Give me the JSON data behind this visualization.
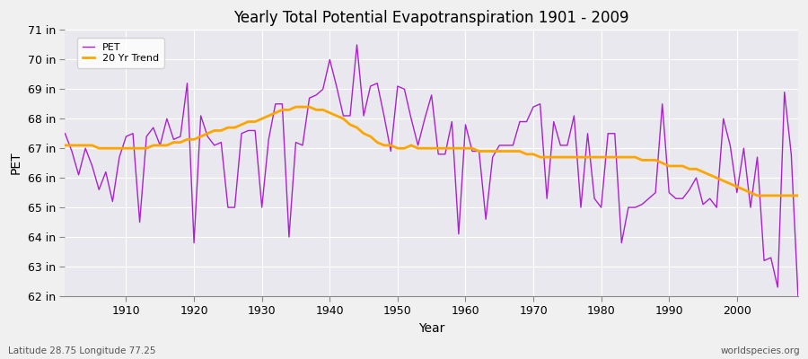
{
  "title": "Yearly Total Potential Evapotranspiration 1901 - 2009",
  "xlabel": "Year",
  "ylabel": "PET",
  "subtitle_left": "Latitude 28.75 Longitude 77.25",
  "subtitle_right": "worldspecies.org",
  "xlim": [
    1901,
    2009
  ],
  "ylim": [
    62,
    71
  ],
  "yticks": [
    62,
    63,
    64,
    65,
    66,
    67,
    68,
    69,
    70,
    71
  ],
  "xticks": [
    1910,
    1920,
    1930,
    1940,
    1950,
    1960,
    1970,
    1980,
    1990,
    2000
  ],
  "pet_color": "#AA22CC",
  "trend_color": "#FFA500",
  "fig_bg_color": "#F0F0F0",
  "plot_bg_color": "#E8E8EE",
  "legend_pet": "PET",
  "legend_trend": "20 Yr Trend",
  "years": [
    1901,
    1902,
    1903,
    1904,
    1905,
    1906,
    1907,
    1908,
    1909,
    1910,
    1911,
    1912,
    1913,
    1914,
    1915,
    1916,
    1917,
    1918,
    1919,
    1920,
    1921,
    1922,
    1923,
    1924,
    1925,
    1926,
    1927,
    1928,
    1929,
    1930,
    1931,
    1932,
    1933,
    1934,
    1935,
    1936,
    1937,
    1938,
    1939,
    1940,
    1941,
    1942,
    1943,
    1944,
    1945,
    1946,
    1947,
    1948,
    1949,
    1950,
    1951,
    1952,
    1953,
    1954,
    1955,
    1956,
    1957,
    1958,
    1959,
    1960,
    1961,
    1962,
    1963,
    1964,
    1965,
    1966,
    1967,
    1968,
    1969,
    1970,
    1971,
    1972,
    1973,
    1974,
    1975,
    1976,
    1977,
    1978,
    1979,
    1980,
    1981,
    1982,
    1983,
    1984,
    1985,
    1986,
    1987,
    1988,
    1989,
    1990,
    1991,
    1992,
    1993,
    1994,
    1995,
    1996,
    1997,
    1998,
    1999,
    2000,
    2001,
    2002,
    2003,
    2004,
    2005,
    2006,
    2007,
    2008,
    2009
  ],
  "pet_values": [
    67.5,
    66.9,
    66.1,
    67.0,
    66.4,
    65.6,
    66.2,
    65.2,
    66.7,
    67.4,
    67.5,
    64.5,
    67.4,
    67.7,
    67.1,
    68.0,
    67.3,
    67.4,
    69.2,
    63.8,
    68.1,
    67.4,
    67.1,
    67.2,
    65.0,
    65.0,
    67.5,
    67.6,
    67.6,
    65.0,
    67.3,
    68.5,
    68.5,
    64.0,
    67.2,
    67.1,
    68.7,
    68.8,
    69.0,
    70.0,
    69.1,
    68.1,
    68.1,
    70.5,
    68.1,
    69.1,
    69.2,
    68.1,
    66.9,
    69.1,
    69.0,
    68.0,
    67.1,
    68.0,
    68.8,
    66.8,
    66.8,
    67.9,
    64.1,
    67.8,
    66.9,
    66.9,
    64.6,
    66.7,
    67.1,
    67.1,
    67.1,
    67.9,
    67.9,
    68.4,
    68.5,
    65.3,
    67.9,
    67.1,
    67.1,
    68.1,
    65.0,
    67.5,
    65.3,
    65.0,
    67.5,
    67.5,
    63.8,
    65.0,
    65.0,
    65.1,
    65.3,
    65.5,
    68.5,
    65.5,
    65.3,
    65.3,
    65.6,
    66.0,
    65.1,
    65.3,
    65.0,
    68.0,
    67.1,
    65.5,
    67.0,
    65.0,
    66.7,
    63.2,
    63.3,
    62.3,
    68.9,
    66.8,
    62.0
  ],
  "trend_values": [
    67.1,
    67.1,
    67.1,
    67.1,
    67.1,
    67.0,
    67.0,
    67.0,
    67.0,
    67.0,
    67.0,
    67.0,
    67.0,
    67.1,
    67.1,
    67.1,
    67.2,
    67.2,
    67.3,
    67.3,
    67.4,
    67.5,
    67.6,
    67.6,
    67.7,
    67.7,
    67.8,
    67.9,
    67.9,
    68.0,
    68.1,
    68.2,
    68.3,
    68.3,
    68.4,
    68.4,
    68.4,
    68.3,
    68.3,
    68.2,
    68.1,
    68.0,
    67.8,
    67.7,
    67.5,
    67.4,
    67.2,
    67.1,
    67.1,
    67.0,
    67.0,
    67.1,
    67.0,
    67.0,
    67.0,
    67.0,
    67.0,
    67.0,
    67.0,
    67.0,
    67.0,
    66.9,
    66.9,
    66.9,
    66.9,
    66.9,
    66.9,
    66.9,
    66.8,
    66.8,
    66.7,
    66.7,
    66.7,
    66.7,
    66.7,
    66.7,
    66.7,
    66.7,
    66.7,
    66.7,
    66.7,
    66.7,
    66.7,
    66.7,
    66.7,
    66.6,
    66.6,
    66.6,
    66.5,
    66.4,
    66.4,
    66.4,
    66.3,
    66.3,
    66.2,
    66.1,
    66.0,
    65.9,
    65.8,
    65.7,
    65.6,
    65.5,
    65.4,
    65.4,
    65.4,
    65.4,
    65.4,
    65.4,
    65.4
  ]
}
